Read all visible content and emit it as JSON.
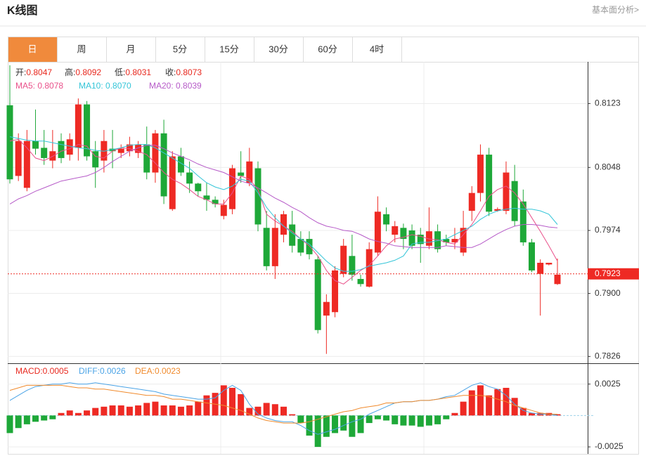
{
  "header": {
    "title": "K线图",
    "link": "基本面分析>"
  },
  "tabs": [
    "日",
    "周",
    "月",
    "5分",
    "15分",
    "30分",
    "60分",
    "4时"
  ],
  "active_tab": 0,
  "chart_data": [
    {
      "type": "candlestick",
      "ohlc_legend": [
        {
          "label": "开:",
          "value": "0.8047"
        },
        {
          "label": "高:",
          "value": "0.8092"
        },
        {
          "label": "低:",
          "value": "0.8031"
        },
        {
          "label": "收:",
          "value": "0.8073"
        }
      ],
      "legend_value_color": "#e8281e",
      "up_color": "#ee2a24",
      "down_color": "#1ea838",
      "open": [
        0.8121,
        0.8038,
        0.8024,
        0.8079,
        0.8071,
        0.8056,
        0.8079,
        0.8063,
        0.8071,
        0.8122,
        0.8067,
        0.8056,
        0.807,
        0.8065,
        0.8067,
        0.8065,
        0.8075,
        0.8042,
        0.8088,
        0.7999,
        0.8061,
        0.8042,
        0.8029,
        0.8015,
        0.801,
        0.7991,
        0.7999,
        0.8042,
        0.803,
        0.8047,
        0.7977,
        0.7932,
        0.7969,
        0.7981,
        0.7964,
        0.7964,
        0.794,
        0.7874,
        0.7878,
        0.7923,
        0.7944,
        0.7917,
        0.7908,
        0.7948,
        0.7993,
        0.7969,
        0.7977,
        0.7974,
        0.7969,
        0.7956,
        0.7973,
        0.7964,
        0.796,
        0.7948,
        0.7997,
        0.8018,
        0.8063,
        0.7997,
        0.7997,
        0.8032,
        0.8008,
        0.796,
        0.7923,
        0.7934,
        0.7911
      ],
      "high": [
        0.8168,
        0.8088,
        0.8092,
        0.8116,
        0.8092,
        0.8092,
        0.8088,
        0.8088,
        0.8129,
        0.8126,
        0.8079,
        0.8092,
        0.8092,
        0.8075,
        0.8084,
        0.8079,
        0.8096,
        0.8092,
        0.8104,
        0.8067,
        0.8071,
        0.8055,
        0.803,
        0.803,
        0.8014,
        0.801,
        0.8051,
        0.8067,
        0.8071,
        0.8055,
        0.7997,
        0.7993,
        0.7997,
        0.7997,
        0.7973,
        0.7973,
        0.7944,
        0.7899,
        0.7932,
        0.7964,
        0.7969,
        0.7922,
        0.796,
        0.8014,
        0.8001,
        0.7985,
        0.7982,
        0.7981,
        0.7977,
        0.8001,
        0.7981,
        0.7969,
        0.7977,
        0.7997,
        0.8026,
        0.8075,
        0.8071,
        0.8001,
        0.8055,
        0.8051,
        0.8022,
        0.7964,
        0.794,
        0.7936,
        0.7941
      ],
      "low": [
        0.8029,
        0.8032,
        0.802,
        0.8063,
        0.8051,
        0.8047,
        0.8053,
        0.8056,
        0.8056,
        0.8056,
        0.8024,
        0.8042,
        0.8047,
        0.8059,
        0.8061,
        0.8059,
        0.8034,
        0.803,
        0.8005,
        0.7997,
        0.8038,
        0.8018,
        0.8014,
        0.7997,
        0.8001,
        0.7987,
        0.7993,
        0.803,
        0.8026,
        0.7973,
        0.7927,
        0.7917,
        0.796,
        0.7948,
        0.7944,
        0.794,
        0.7853,
        0.7829,
        0.7872,
        0.7919,
        0.7915,
        0.7908,
        0.7907,
        0.7944,
        0.7973,
        0.796,
        0.7952,
        0.7952,
        0.7936,
        0.7952,
        0.7948,
        0.7956,
        0.7952,
        0.7944,
        0.7985,
        0.8008,
        0.7991,
        0.7996,
        0.7993,
        0.7979,
        0.7956,
        0.7925,
        0.7874,
        0.7933,
        0.791
      ],
      "close": [
        0.8034,
        0.8079,
        0.8079,
        0.807,
        0.8059,
        0.8067,
        0.8059,
        0.8081,
        0.8122,
        0.8061,
        0.8048,
        0.8079,
        0.8067,
        0.807,
        0.8075,
        0.8075,
        0.8042,
        0.8088,
        0.8014,
        0.8061,
        0.8042,
        0.8029,
        0.802,
        0.801,
        0.8005,
        0.8004,
        0.8047,
        0.8038,
        0.8055,
        0.7981,
        0.7932,
        0.7977,
        0.7993,
        0.7956,
        0.7948,
        0.7946,
        0.7857,
        0.789,
        0.7927,
        0.7956,
        0.7922,
        0.7911,
        0.7952,
        0.7996,
        0.7981,
        0.7979,
        0.7964,
        0.7956,
        0.7958,
        0.7973,
        0.7952,
        0.796,
        0.7964,
        0.7977,
        0.8018,
        0.8063,
        0.7996,
        0.7999,
        0.8042,
        0.7985,
        0.796,
        0.7927,
        0.7936,
        0.7936,
        0.7922
      ],
      "series": [
        {
          "name": "MA5: ",
          "legend_value": "0.8078",
          "color": "#e9508a",
          "values": [
            0.8079,
            0.8081,
            0.8071,
            0.8059,
            0.8056,
            0.8061,
            0.8067,
            0.807,
            0.8075,
            0.8073,
            0.8061,
            0.8059,
            0.8067,
            0.8071,
            0.807,
            0.8067,
            0.8063,
            0.8053,
            0.8042,
            0.8034,
            0.8029,
            0.8022,
            0.8014,
            0.801,
            0.8005,
            0.8005,
            0.8018,
            0.8038,
            0.8034,
            0.8022,
            0.7993,
            0.7985,
            0.7979,
            0.7973,
            0.7964,
            0.7956,
            0.7944,
            0.7927,
            0.7915,
            0.7911,
            0.7919,
            0.7927,
            0.7933,
            0.7944,
            0.7956,
            0.7964,
            0.7966,
            0.7969,
            0.7967,
            0.7964,
            0.7963,
            0.796,
            0.7958,
            0.7969,
            0.7981,
            0.7997,
            0.8014,
            0.8022,
            0.8026,
            0.8018,
            0.8005,
            0.7989,
            0.7973,
            0.7956,
            0.7938
          ]
        },
        {
          "name": "MA10: ",
          "legend_value": "0.8070",
          "color": "#33c5d8",
          "values": [
            0.8084,
            0.8082,
            0.808,
            0.8079,
            0.8079,
            0.8077,
            0.8075,
            0.8073,
            0.8071,
            0.807,
            0.8068,
            0.8067,
            0.8069,
            0.8071,
            0.8074,
            0.8075,
            0.8075,
            0.8071,
            0.8065,
            0.8059,
            0.8053,
            0.8047,
            0.8038,
            0.803,
            0.8025,
            0.8022,
            0.8026,
            0.8034,
            0.8032,
            0.8018,
            0.8001,
            0.7989,
            0.7979,
            0.7971,
            0.7964,
            0.7958,
            0.7948,
            0.7938,
            0.793,
            0.7926,
            0.7926,
            0.7928,
            0.7932,
            0.7934,
            0.7936,
            0.7939,
            0.7944,
            0.7958,
            0.796,
            0.796,
            0.7962,
            0.7964,
            0.7969,
            0.7974,
            0.7979,
            0.7987,
            0.7993,
            0.7997,
            0.7999,
            0.8,
            0.7999,
            0.7999,
            0.7997,
            0.7993,
            0.7981
          ]
        },
        {
          "name": "MA20: ",
          "legend_value": "0.8039",
          "color": "#b65ac8",
          "values": [
            0.8005,
            0.8011,
            0.8015,
            0.802,
            0.8024,
            0.8028,
            0.8032,
            0.8034,
            0.8036,
            0.8038,
            0.8042,
            0.8048,
            0.8055,
            0.8061,
            0.8067,
            0.8071,
            0.8074,
            0.8074,
            0.807,
            0.8065,
            0.8061,
            0.8057,
            0.8052,
            0.8048,
            0.8045,
            0.8042,
            0.8037,
            0.8032,
            0.8029,
            0.8024,
            0.8018,
            0.8012,
            0.8007,
            0.8001,
            0.7996,
            0.7989,
            0.7983,
            0.7979,
            0.7977,
            0.7974,
            0.7973,
            0.7969,
            0.7964,
            0.7961,
            0.7959,
            0.7956,
            0.7955,
            0.7954,
            0.7954,
            0.7954,
            0.7954,
            0.7956,
            0.7955,
            0.7954,
            0.7954,
            0.7958,
            0.7964,
            0.797,
            0.7975,
            0.7979,
            0.7981,
            0.7981,
            0.798,
            0.7978,
            0.7977
          ]
        }
      ],
      "last_price": 0.7923,
      "last_price_color": "#ee2a24",
      "ylim": [
        0.7818,
        0.8172
      ],
      "yticks": [
        0.8123,
        0.8048,
        0.7974,
        {
          "value": 0.79,
          "label": "0.7900"
        },
        0.7826
      ],
      "grid": true
    },
    {
      "type": "macd",
      "legend": [
        {
          "label": "MACD:",
          "value": "0.0005",
          "color": "#e8281e"
        },
        {
          "label": "DIFF:",
          "value": "0.0026",
          "color": "#4aa3e6"
        },
        {
          "label": "DEA:",
          "value": "0.0023",
          "color": "#f08a2c"
        }
      ],
      "up_color": "#ee2a24",
      "down_color": "#1ea838",
      "values": [
        -0.0014,
        -0.001,
        -0.0007,
        -0.0005,
        -0.0004,
        -0.0003,
        0.0002,
        0.0004,
        0.0002,
        0.0004,
        0.0006,
        0.0007,
        0.0008,
        0.0008,
        0.0007,
        0.0008,
        0.001,
        0.0011,
        0.0008,
        0.0008,
        0.0007,
        0.0008,
        0.0011,
        0.0016,
        0.0018,
        0.0024,
        0.0022,
        0.0017,
        0.0006,
        0.0007,
        0.001,
        0.0009,
        0.0007,
        0.0001,
        -0.0006,
        -0.0016,
        -0.0025,
        -0.0017,
        -0.0014,
        -0.0012,
        -0.0017,
        -0.0014,
        -0.0006,
        -0.0003,
        -0.0004,
        -0.0007,
        -0.0008,
        -0.0008,
        -0.0009,
        -0.0008,
        -0.0007,
        -0.0003,
        0.0002,
        0.0011,
        0.002,
        0.0024,
        0.0016,
        0.0021,
        0.0022,
        0.0014,
        0.0006,
        0.0002,
        0.0002,
        0.0002,
        0.0001
      ],
      "series": [
        {
          "name": "DIFF:",
          "color": "#4aa3e6",
          "values": [
            0.0012,
            0.0016,
            0.002,
            0.0023,
            0.0024,
            0.0025,
            0.0025,
            0.0026,
            0.0025,
            0.0025,
            0.0026,
            0.0025,
            0.0024,
            0.0023,
            0.0022,
            0.0021,
            0.002,
            0.0019,
            0.0017,
            0.0016,
            0.0015,
            0.0014,
            0.0013,
            0.0013,
            0.0014,
            0.002,
            0.0024,
            0.002,
            0.0009,
            0.0001,
            -0.0002,
            -0.0004,
            -0.0005,
            -0.0005,
            -0.0008,
            -0.0012,
            -0.0015,
            -0.0013,
            -0.0011,
            -0.0008,
            -0.0005,
            -0.0003,
            0.0001,
            0.0004,
            0.0007,
            0.001,
            0.0011,
            0.0011,
            0.0012,
            0.0012,
            0.0013,
            0.0015,
            0.0016,
            0.002,
            0.0024,
            0.0026,
            0.0023,
            0.0021,
            0.0016,
            0.0009,
            0.0004,
            0.0002,
            0.0001,
            0.0001,
            0
          ]
        },
        {
          "name": "DEA:",
          "color": "#f08a2c",
          "values": [
            0.002,
            0.0022,
            0.0024,
            0.0024,
            0.0024,
            0.0024,
            0.0024,
            0.0023,
            0.0022,
            0.0022,
            0.0021,
            0.0021,
            0.002,
            0.0019,
            0.0018,
            0.0017,
            0.0016,
            0.0016,
            0.0015,
            0.0013,
            0.0013,
            0.0012,
            0.0011,
            0.001,
            0.0009,
            0.0008,
            0.0006,
            0.0004,
            0.0001,
            -0.0002,
            -0.0004,
            -0.0005,
            -0.0006,
            -0.0006,
            -0.0006,
            -0.0005,
            -0.0003,
            -0.0001,
            0.0001,
            0.0003,
            0.0004,
            0.0006,
            0.0007,
            0.0008,
            0.001,
            0.001,
            0.0011,
            0.0011,
            0.0012,
            0.0012,
            0.0013,
            0.0014,
            0.0015,
            0.0016,
            0.0016,
            0.0016,
            0.0015,
            0.0013,
            0.0011,
            0.0008,
            0.0006,
            0.0004,
            0.0002,
            0.0001,
            0.0001
          ]
        }
      ],
      "ylim": [
        -0.003,
        0.0041
      ],
      "yticks": [
        0.0025,
        -0.0025
      ],
      "grid": true
    }
  ]
}
